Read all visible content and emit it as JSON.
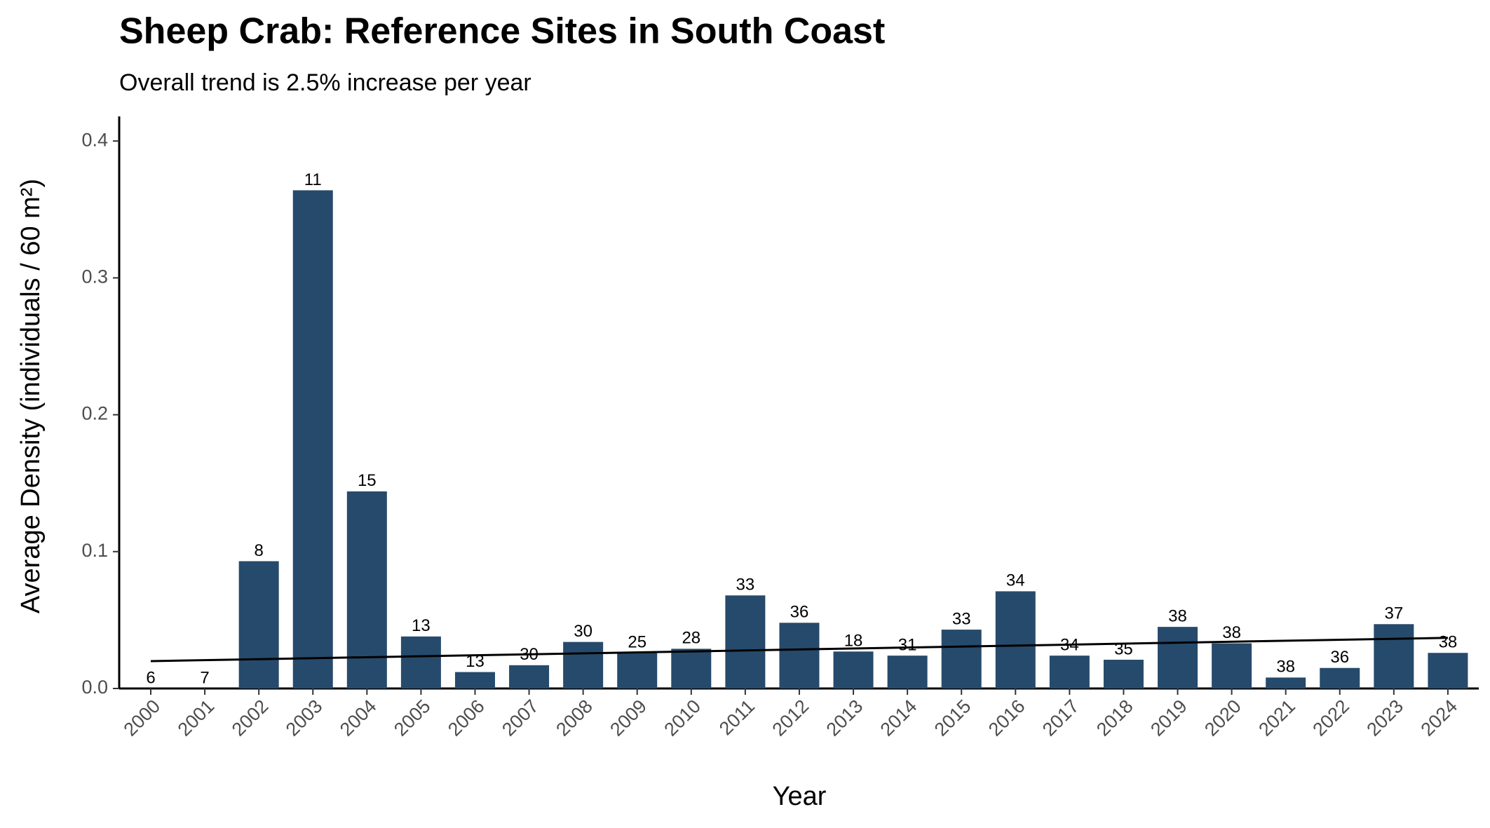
{
  "chart_data": {
    "type": "bar",
    "title": "Sheep Crab: Reference Sites in South Coast",
    "subtitle": "Overall trend is 2.5% increase per year",
    "x_label": "Year",
    "y_label": "Average Density (individuals / 60 m²)",
    "categories": [
      "2000",
      "2001",
      "2002",
      "2003",
      "2004",
      "2005",
      "2006",
      "2007",
      "2008",
      "2009",
      "2010",
      "2011",
      "2012",
      "2013",
      "2014",
      "2015",
      "2016",
      "2017",
      "2018",
      "2019",
      "2020",
      "2021",
      "2022",
      "2023",
      "2024"
    ],
    "values": [
      0,
      0,
      0.093,
      0.364,
      0.144,
      0.038,
      0.012,
      0.017,
      0.034,
      0.026,
      0.029,
      0.068,
      0.048,
      0.027,
      0.024,
      0.043,
      0.071,
      0.024,
      0.021,
      0.045,
      0.033,
      0.008,
      0.015,
      0.047,
      0.026
    ],
    "sample_sizes": [
      6,
      7,
      8,
      11,
      15,
      13,
      13,
      30,
      30,
      25,
      28,
      33,
      36,
      18,
      31,
      33,
      34,
      34,
      35,
      38,
      38,
      38,
      36,
      37,
      38
    ],
    "trend": [
      0.02,
      0.037
    ],
    "color": "#264a6b",
    "trend_color": "#000000",
    "ylim": [
      0,
      0.418
    ],
    "yticks": [
      {
        "value": 0,
        "label": "0.0"
      },
      0.1,
      0.2,
      0.3,
      0.4
    ],
    "grid": false
  }
}
